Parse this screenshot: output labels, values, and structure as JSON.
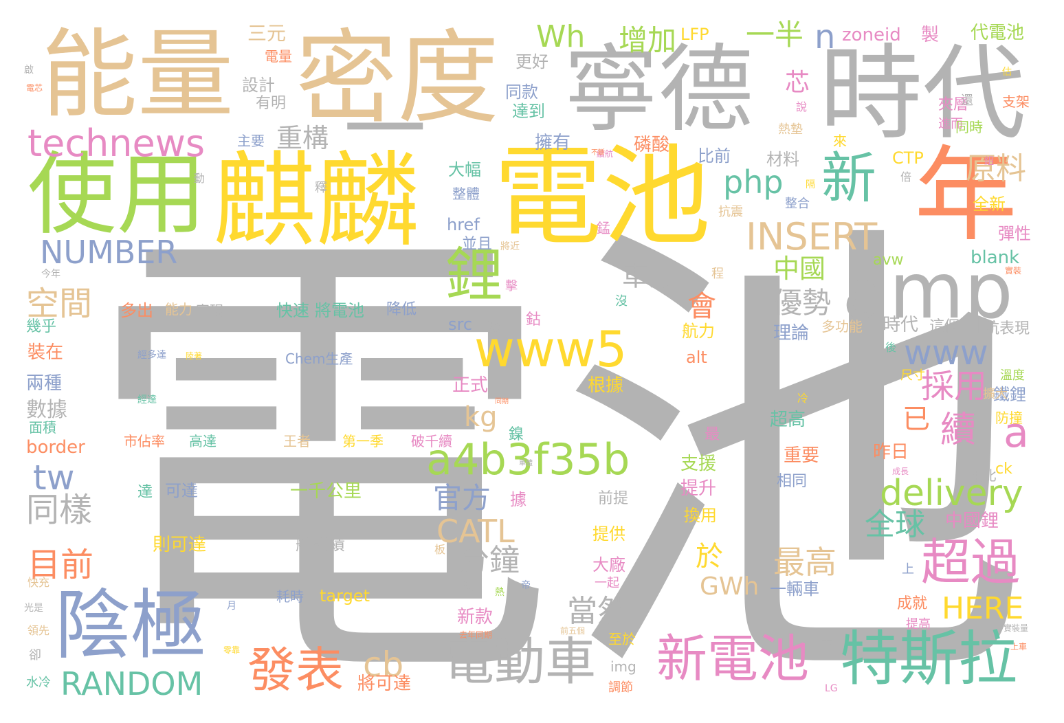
{
  "palette": {
    "gray": "#b3b3b3",
    "tan": "#e5c494",
    "yellow": "#ffd92f",
    "green": "#a6d854",
    "pink": "#e78ac3",
    "blue": "#8da0cb",
    "orange": "#fc8d62",
    "teal": "#66c2a5"
  },
  "words": [
    {
      "id": "w1",
      "text": "電池",
      "color": "gray"
    },
    {
      "id": "w2",
      "text": "麒麟",
      "color": "yellow"
    },
    {
      "id": "w3",
      "text": "電池",
      "color": "yellow"
    },
    {
      "id": "w4",
      "text": "能量",
      "color": "tan"
    },
    {
      "id": "w5",
      "text": "密度",
      "color": "tan"
    },
    {
      "id": "w6",
      "text": "寧德",
      "color": "gray"
    },
    {
      "id": "w7",
      "text": "時代",
      "color": "gray"
    },
    {
      "id": "w8",
      "text": "一",
      "color": "gray"
    },
    {
      "id": "w9",
      "text": "年",
      "color": "orange"
    },
    {
      "id": "w10",
      "text": "使用",
      "color": "green"
    },
    {
      "id": "w11",
      "text": "陰極",
      "color": "blue"
    },
    {
      "id": "w12",
      "text": "amp",
      "color": "gray"
    },
    {
      "id": "w13",
      "text": "新",
      "color": "teal"
    },
    {
      "id": "w14",
      "text": "鋰",
      "color": "green"
    },
    {
      "id": "w15",
      "text": "technews",
      "color": "pink"
    },
    {
      "id": "w16",
      "text": "www5",
      "color": "yellow"
    },
    {
      "id": "w17",
      "text": "a4b3f35b",
      "color": "green"
    },
    {
      "id": "w18",
      "text": "特斯拉",
      "color": "teal"
    },
    {
      "id": "w19",
      "text": "新電池",
      "color": "pink"
    },
    {
      "id": "w20",
      "text": "電動車",
      "color": "gray"
    },
    {
      "id": "w21",
      "text": "發表",
      "color": "orange"
    },
    {
      "id": "w22",
      "text": "超過",
      "color": "pink"
    },
    {
      "id": "w23",
      "text": "delivery",
      "color": "green"
    },
    {
      "id": "w24",
      "text": "INSERT",
      "color": "tan"
    },
    {
      "id": "w25",
      "text": "NUMBER",
      "color": "blue"
    },
    {
      "id": "w26",
      "text": "RANDOM",
      "color": "teal"
    },
    {
      "id": "w27",
      "text": "php",
      "color": "teal"
    },
    {
      "id": "w28",
      "text": "www",
      "color": "blue"
    },
    {
      "id": "w29",
      "text": "CATL",
      "color": "tan"
    },
    {
      "id": "w30",
      "text": "HERE",
      "color": "yellow"
    },
    {
      "id": "w31",
      "text": "Wh",
      "color": "green"
    },
    {
      "id": "w32",
      "text": "增加",
      "color": "green"
    },
    {
      "id": "w33",
      "text": "一半",
      "color": "green"
    },
    {
      "id": "w34",
      "text": "n",
      "color": "blue"
    },
    {
      "id": "w35",
      "text": "原料",
      "color": "tan"
    },
    {
      "id": "w36",
      "text": "續",
      "color": "pink"
    },
    {
      "id": "w37",
      "text": "a",
      "color": "pink"
    },
    {
      "id": "w38",
      "text": "tw",
      "color": "blue"
    },
    {
      "id": "w39",
      "text": "同樣",
      "color": "gray"
    },
    {
      "id": "w40",
      "text": "空間",
      "color": "tan"
    },
    {
      "id": "w41",
      "text": "目前",
      "color": "orange"
    },
    {
      "id": "w42",
      "text": "cb",
      "color": "tan"
    },
    {
      "id": "w43",
      "text": "官方",
      "color": "blue"
    },
    {
      "id": "w44",
      "text": "分鐘",
      "color": "gray"
    },
    {
      "id": "w45",
      "text": "當然",
      "color": "gray"
    },
    {
      "id": "w46",
      "text": "採用",
      "color": "pink"
    },
    {
      "id": "w47",
      "text": "全球",
      "color": "teal"
    },
    {
      "id": "w48",
      "text": "最高",
      "color": "tan"
    },
    {
      "id": "w49",
      "text": "優勢",
      "color": "gray"
    },
    {
      "id": "w50",
      "text": "重構",
      "color": "gray"
    },
    {
      "id": "w51",
      "text": "kg",
      "color": "tan"
    },
    {
      "id": "w52",
      "text": "車用",
      "color": "gray"
    },
    {
      "id": "w53",
      "text": "會",
      "color": "orange"
    },
    {
      "id": "w54",
      "text": "中國",
      "color": "green"
    },
    {
      "id": "w55",
      "text": "芯",
      "color": "pink"
    },
    {
      "id": "w56",
      "text": "已",
      "color": "orange"
    },
    {
      "id": "w57",
      "text": "GWh",
      "color": "tan"
    },
    {
      "id": "w58",
      "text": "於",
      "color": "yellow"
    },
    {
      "id": "w59",
      "text": "src",
      "color": "blue"
    },
    {
      "id": "w60",
      "text": "三元",
      "color": "tan"
    },
    {
      "id": "w61",
      "text": "LFP",
      "color": "yellow"
    },
    {
      "id": "w62",
      "text": "zoneid",
      "color": "pink"
    },
    {
      "id": "w63",
      "text": "製",
      "color": "pink"
    },
    {
      "id": "w64",
      "text": "代電池",
      "color": "green"
    },
    {
      "id": "w65",
      "text": "電量",
      "color": "orange"
    },
    {
      "id": "w66",
      "text": "設計",
      "color": "gray"
    },
    {
      "id": "w67",
      "text": "有明",
      "color": "gray"
    },
    {
      "id": "w68",
      "text": "更好",
      "color": "gray"
    },
    {
      "id": "w69",
      "text": "同款",
      "color": "blue"
    },
    {
      "id": "w70",
      "text": "達到",
      "color": "teal"
    },
    {
      "id": "w71",
      "text": "擁有",
      "color": "blue"
    },
    {
      "id": "w72",
      "text": "磷酸",
      "color": "orange"
    },
    {
      "id": "w73",
      "text": "主要",
      "color": "blue"
    },
    {
      "id": "w74",
      "text": "比前",
      "color": "blue"
    },
    {
      "id": "w75",
      "text": "材料",
      "color": "gray"
    },
    {
      "id": "w76",
      "text": "大幅",
      "color": "teal"
    },
    {
      "id": "w77",
      "text": "整體",
      "color": "blue"
    },
    {
      "id": "w78",
      "text": "href",
      "color": "blue"
    },
    {
      "id": "w79",
      "text": "並且",
      "color": "blue"
    },
    {
      "id": "w80",
      "text": "CTP",
      "color": "yellow"
    },
    {
      "id": "w81",
      "text": "全新",
      "color": "yellow"
    },
    {
      "id": "w82",
      "text": "整合",
      "color": "blue"
    },
    {
      "id": "w83",
      "text": "抗震",
      "color": "tan"
    },
    {
      "id": "w84",
      "text": "錳",
      "color": "pink"
    },
    {
      "id": "w85",
      "text": "彈性",
      "color": "pink"
    },
    {
      "id": "w86",
      "text": "avw",
      "color": "green"
    },
    {
      "id": "w87",
      "text": "blank",
      "color": "teal"
    },
    {
      "id": "w88",
      "text": "夾層",
      "color": "pink"
    },
    {
      "id": "w89",
      "text": "進而",
      "color": "pink"
    },
    {
      "id": "w90",
      "text": "同時",
      "color": "green"
    },
    {
      "id": "w91",
      "text": "支架",
      "color": "orange"
    },
    {
      "id": "w92",
      "text": "熱墊",
      "color": "tan"
    },
    {
      "id": "w93",
      "text": "來",
      "color": "yellow"
    },
    {
      "id": "w94",
      "text": "多出",
      "color": "orange"
    },
    {
      "id": "w95",
      "text": "能力",
      "color": "tan"
    },
    {
      "id": "w96",
      "text": "實現",
      "color": "gray"
    },
    {
      "id": "w97",
      "text": "快速",
      "color": "teal"
    },
    {
      "id": "w98",
      "text": "將電池",
      "color": "teal"
    },
    {
      "id": "w99",
      "text": "降低",
      "color": "blue"
    },
    {
      "id": "w100",
      "text": "鈷",
      "color": "pink"
    },
    {
      "id": "w101",
      "text": "放出",
      "color": "gray"
    },
    {
      "id": "w102",
      "text": "航力",
      "color": "yellow"
    },
    {
      "id": "w103",
      "text": "理論",
      "color": "blue"
    },
    {
      "id": "w104",
      "text": "多功能",
      "color": "tan"
    },
    {
      "id": "w105",
      "text": "時代",
      "color": "gray"
    },
    {
      "id": "w106",
      "text": "這個",
      "color": "gray"
    },
    {
      "id": "w107",
      "text": "航表現",
      "color": "gray"
    },
    {
      "id": "w108",
      "text": "幾乎",
      "color": "teal"
    },
    {
      "id": "w109",
      "text": "裝在",
      "color": "orange"
    },
    {
      "id": "w110",
      "text": "兩種",
      "color": "blue"
    },
    {
      "id": "w111",
      "text": "數據",
      "color": "gray"
    },
    {
      "id": "w112",
      "text": "面積",
      "color": "teal"
    },
    {
      "id": "w113",
      "text": "border",
      "color": "orange"
    },
    {
      "id": "w114",
      "text": "Chem生產",
      "color": "blue"
    },
    {
      "id": "w115",
      "text": "正式",
      "color": "pink"
    },
    {
      "id": "w116",
      "text": "根據",
      "color": "yellow"
    },
    {
      "id": "w117",
      "text": "alt",
      "color": "orange"
    },
    {
      "id": "w118",
      "text": "鐵鋰",
      "color": "blue"
    },
    {
      "id": "w119",
      "text": "超高",
      "color": "teal"
    },
    {
      "id": "w120",
      "text": "防撞",
      "color": "yellow"
    },
    {
      "id": "w121",
      "text": "溫度",
      "color": "green"
    },
    {
      "id": "w122",
      "text": "擴大",
      "color": "tan"
    },
    {
      "id": "w123",
      "text": "尺寸",
      "color": "yellow"
    },
    {
      "id": "w124",
      "text": "市佔率",
      "color": "orange"
    },
    {
      "id": "w125",
      "text": "高達",
      "color": "teal"
    },
    {
      "id": "w126",
      "text": "王者",
      "color": "tan"
    },
    {
      "id": "w127",
      "text": "第一季",
      "color": "yellow"
    },
    {
      "id": "w128",
      "text": "破千續",
      "color": "pink"
    },
    {
      "id": "w129",
      "text": "鎳",
      "color": "teal"
    },
    {
      "id": "w130",
      "text": "最",
      "color": "pink"
    },
    {
      "id": "w131",
      "text": "重要",
      "color": "orange"
    },
    {
      "id": "w132",
      "text": "昨日",
      "color": "orange"
    },
    {
      "id": "w133",
      "text": "ck",
      "color": "yellow"
    },
    {
      "id": "w134",
      "text": "相比",
      "color": "gray"
    },
    {
      "id": "w135",
      "text": "支援",
      "color": "green"
    },
    {
      "id": "w136",
      "text": "提升",
      "color": "pink"
    },
    {
      "id": "w137",
      "text": "相同",
      "color": "blue"
    },
    {
      "id": "w138",
      "text": "可達",
      "color": "blue"
    },
    {
      "id": "w139",
      "text": "一千公里",
      "color": "green"
    },
    {
      "id": "w140",
      "text": "達",
      "color": "teal"
    },
    {
      "id": "w141",
      "text": "據",
      "color": "pink"
    },
    {
      "id": "w142",
      "text": "前提",
      "color": "gray"
    },
    {
      "id": "w143",
      "text": "換用",
      "color": "yellow"
    },
    {
      "id": "w144",
      "text": "中國鋰",
      "color": "pink"
    },
    {
      "id": "w145",
      "text": "則可達",
      "color": "yellow"
    },
    {
      "id": "w146",
      "text": "航成績",
      "color": "gray"
    },
    {
      "id": "w147",
      "text": "提供",
      "color": "yellow"
    },
    {
      "id": "w148",
      "text": "大廠",
      "color": "pink"
    },
    {
      "id": "w149",
      "text": "一起",
      "color": "pink"
    },
    {
      "id": "w150",
      "text": "稱",
      "color": "gray"
    },
    {
      "id": "w151",
      "text": "上",
      "color": "blue"
    },
    {
      "id": "w152",
      "text": "耗時",
      "color": "blue"
    },
    {
      "id": "w153",
      "text": "target",
      "color": "yellow"
    },
    {
      "id": "w154",
      "text": "一輛車",
      "color": "blue"
    },
    {
      "id": "w155",
      "text": "成就",
      "color": "orange"
    },
    {
      "id": "w156",
      "text": "提高",
      "color": "pink"
    },
    {
      "id": "w157",
      "text": "新款",
      "color": "pink"
    },
    {
      "id": "w158",
      "text": "至於",
      "color": "yellow"
    },
    {
      "id": "w159",
      "text": "img",
      "color": "gray"
    },
    {
      "id": "w160",
      "text": "將可達",
      "color": "orange"
    },
    {
      "id": "w161",
      "text": "調節",
      "color": "orange"
    },
    {
      "id": "w162",
      "text": "水冷",
      "color": "teal"
    },
    {
      "id": "w163",
      "text": "卻",
      "color": "gray"
    },
    {
      "id": "w164",
      "text": "領先",
      "color": "tan"
    },
    {
      "id": "w165",
      "text": "光是",
      "color": "gray"
    },
    {
      "id": "w166",
      "text": "快充",
      "color": "tan"
    },
    {
      "id": "w167",
      "text": "今年",
      "color": "gray"
    },
    {
      "id": "w168",
      "text": "啟",
      "color": "gray"
    },
    {
      "id": "w169",
      "text": "還",
      "color": "gray"
    },
    {
      "id": "w170",
      "text": "說",
      "color": "pink"
    },
    {
      "id": "w171",
      "text": "估",
      "color": "yellow"
    },
    {
      "id": "w172",
      "text": "倍",
      "color": "gray"
    },
    {
      "id": "w173",
      "text": "組",
      "color": "pink"
    },
    {
      "id": "w174",
      "text": "隔",
      "color": "yellow"
    },
    {
      "id": "w175",
      "text": "動",
      "color": "gray"
    },
    {
      "id": "w176",
      "text": "釋",
      "color": "gray"
    },
    {
      "id": "w177",
      "text": "程",
      "color": "tan"
    },
    {
      "id": "w178",
      "text": "沒",
      "color": "teal"
    },
    {
      "id": "w179",
      "text": "擊",
      "color": "pink"
    },
    {
      "id": "w180",
      "text": "將近",
      "color": "tan"
    },
    {
      "id": "w181",
      "text": "後",
      "color": "teal"
    },
    {
      "id": "w182",
      "text": "冷",
      "color": "yellow"
    },
    {
      "id": "w183",
      "text": "板",
      "color": "tan"
    },
    {
      "id": "w184",
      "text": "熱",
      "color": "green"
    },
    {
      "id": "w185",
      "text": "帝",
      "color": "blue"
    },
    {
      "id": "w186",
      "text": "月",
      "color": "blue"
    },
    {
      "id": "w187",
      "text": "下",
      "color": "gray"
    },
    {
      "id": "w188",
      "text": "LG",
      "color": "pink"
    },
    {
      "id": "w189",
      "text": "實裝量",
      "color": "gray"
    },
    {
      "id": "w190",
      "text": "上車",
      "color": "orange"
    },
    {
      "id": "w191",
      "text": "成長",
      "color": "pink"
    },
    {
      "id": "w192",
      "text": "實裝",
      "color": "orange"
    },
    {
      "id": "w193",
      "text": "前五個",
      "color": "tan"
    },
    {
      "id": "w194",
      "text": "去年同期",
      "color": "orange"
    },
    {
      "id": "w195",
      "text": "續航",
      "color": "pink"
    },
    {
      "id": "w196",
      "text": "不斷",
      "color": "orange"
    },
    {
      "id": "w197",
      "text": "經多達",
      "color": "blue"
    },
    {
      "id": "w198",
      "text": "陸著",
      "color": "yellow"
    },
    {
      "id": "w199",
      "text": "經達",
      "color": "teal"
    },
    {
      "id": "w200",
      "text": "同期",
      "color": "orange"
    },
    {
      "id": "w201",
      "text": "零靠",
      "color": "yellow"
    },
    {
      "id": "w202",
      "text": "單體",
      "color": "gray"
    },
    {
      "id": "w203",
      "text": "電芯",
      "color": "orange"
    }
  ]
}
